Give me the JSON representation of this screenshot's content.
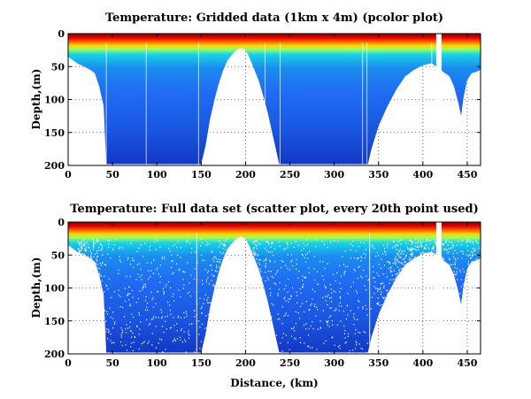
{
  "chart_data": [
    {
      "type": "heatmap",
      "title": "Temperature: Gridded data (1km x 4m) (pcolor plot)",
      "xlabel": "",
      "ylabel": "Depth,(m)",
      "xlim": [
        0,
        465
      ],
      "ylim": [
        200,
        0
      ],
      "y_reversed": true,
      "xticks": [
        0,
        50,
        100,
        150,
        200,
        250,
        300,
        350,
        400,
        450
      ],
      "yticks": [
        0,
        50,
        100,
        150,
        200
      ],
      "grid": "dotted",
      "colormap": "jet",
      "bottom_profile": {
        "x": [
          0,
          5,
          10,
          18,
          25,
          30,
          35,
          40,
          43,
          60,
          100,
          130,
          140,
          145,
          150,
          155,
          160,
          165,
          170,
          175,
          180,
          185,
          190,
          195,
          200,
          205,
          210,
          215,
          220,
          225,
          230,
          235,
          238,
          260,
          300,
          330,
          338,
          342,
          350,
          360,
          370,
          380,
          390,
          400,
          410,
          415,
          420,
          425,
          430,
          435,
          440,
          443,
          446,
          450,
          455,
          460,
          465
        ],
        "depth": [
          35,
          40,
          45,
          50,
          55,
          60,
          80,
          110,
          198,
          198,
          198,
          198,
          198,
          198,
          198,
          170,
          130,
          100,
          75,
          55,
          40,
          32,
          25,
          22,
          25,
          38,
          55,
          72,
          95,
          120,
          150,
          180,
          198,
          198,
          198,
          198,
          198,
          175,
          140,
          110,
          85,
          65,
          55,
          48,
          45,
          50,
          55,
          60,
          65,
          80,
          105,
          125,
          95,
          70,
          60,
          58,
          55
        ]
      },
      "gaps_x": [
        [
          415,
          421
        ]
      ],
      "colors": {
        "surface": "#c80000",
        "upper": "#ffd200",
        "mid": "#19c8e1",
        "deep": "#1f6cf2",
        "bottom": "#1138c8"
      }
    },
    {
      "type": "scatter",
      "title": "Temperature: Full data set (scatter plot, every 20th point used)",
      "xlabel": "Distance, (km)",
      "ylabel": "Depth,(m)",
      "xlim": [
        0,
        465
      ],
      "ylim": [
        200,
        0
      ],
      "y_reversed": true,
      "xticks": [
        0,
        50,
        100,
        150,
        200,
        250,
        300,
        350,
        400,
        450
      ],
      "yticks": [
        0,
        50,
        100,
        150,
        200
      ],
      "grid": "dotted",
      "colormap": "jet",
      "bottom_profile": "same as gridded panel",
      "gaps_x": [
        [
          415,
          421
        ]
      ]
    }
  ]
}
